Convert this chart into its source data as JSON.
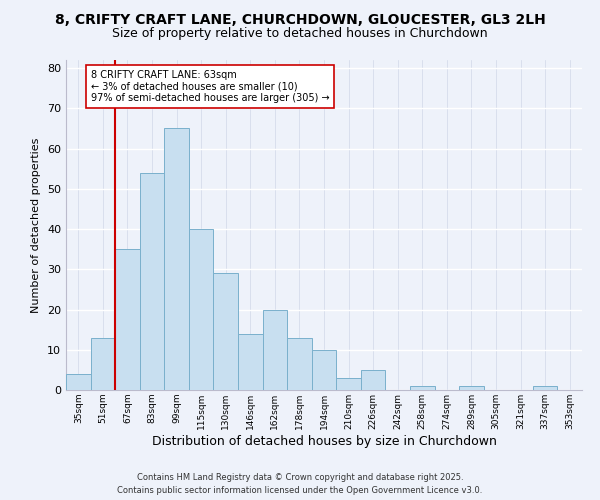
{
  "title1": "8, CRIFTY CRAFT LANE, CHURCHDOWN, GLOUCESTER, GL3 2LH",
  "title2": "Size of property relative to detached houses in Churchdown",
  "xlabel": "Distribution of detached houses by size in Churchdown",
  "ylabel": "Number of detached properties",
  "bin_labels": [
    "35sqm",
    "51sqm",
    "67sqm",
    "83sqm",
    "99sqm",
    "115sqm",
    "130sqm",
    "146sqm",
    "162sqm",
    "178sqm",
    "194sqm",
    "210sqm",
    "226sqm",
    "242sqm",
    "258sqm",
    "274sqm",
    "289sqm",
    "305sqm",
    "321sqm",
    "337sqm",
    "353sqm"
  ],
  "bar_heights": [
    4,
    13,
    35,
    54,
    65,
    40,
    29,
    14,
    20,
    13,
    10,
    3,
    5,
    0,
    1,
    0,
    1,
    0,
    0,
    1,
    0
  ],
  "bar_color": "#c8dff0",
  "bar_edge_color": "#7ab0cc",
  "vline_x_idx": 2,
  "vline_color": "#cc0000",
  "annotation_text": "8 CRIFTY CRAFT LANE: 63sqm\n← 3% of detached houses are smaller (10)\n97% of semi-detached houses are larger (305) →",
  "annotation_box_color": "#ffffff",
  "annotation_box_edge": "#cc0000",
  "ylim": [
    0,
    82
  ],
  "yticks": [
    0,
    10,
    20,
    30,
    40,
    50,
    60,
    70,
    80
  ],
  "background_color": "#eef2fa",
  "grid_color": "#d0d8e8",
  "footer1": "Contains HM Land Registry data © Crown copyright and database right 2025.",
  "footer2": "Contains public sector information licensed under the Open Government Licence v3.0.",
  "title1_fontsize": 10,
  "title2_fontsize": 9,
  "xlabel_fontsize": 9,
  "ylabel_fontsize": 8
}
